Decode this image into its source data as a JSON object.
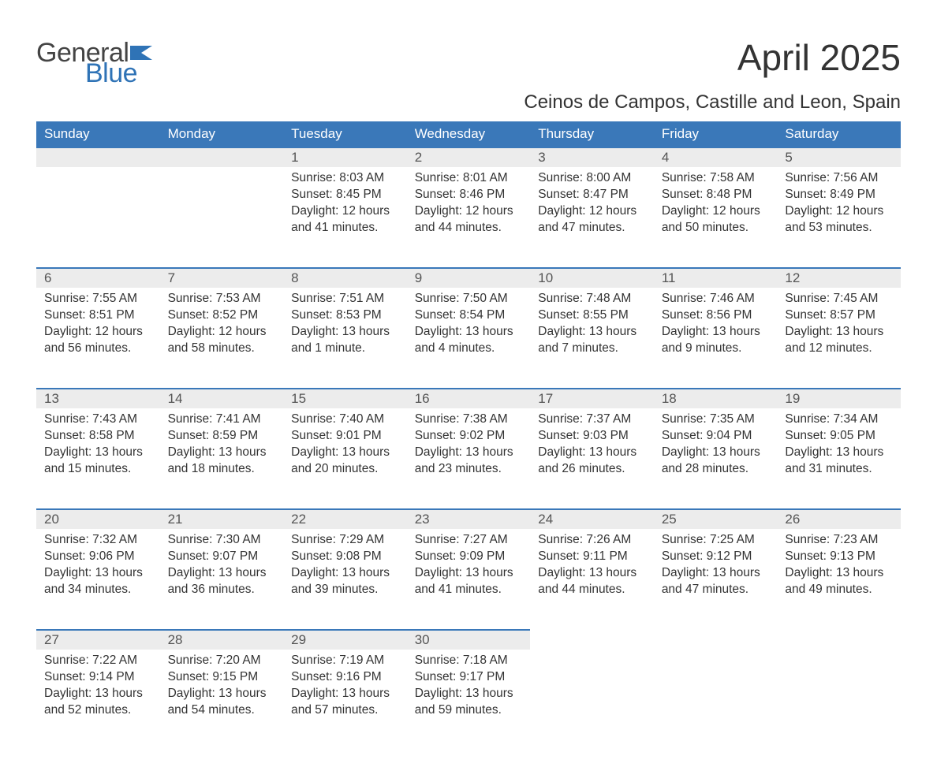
{
  "logo": {
    "text_general": "General",
    "text_blue": "Blue",
    "flag_color": "#2f73b6"
  },
  "title": "April 2025",
  "subtitle": "Ceinos de Campos, Castille and Leon, Spain",
  "colors": {
    "header_bg": "#3a78b9",
    "header_text": "#ffffff",
    "daynum_bg": "#ececec",
    "daynum_border": "#3a78b9",
    "body_text": "#333333",
    "page_bg": "#ffffff"
  },
  "typography": {
    "title_fontsize": 46,
    "subtitle_fontsize": 24,
    "header_fontsize": 17,
    "daynum_fontsize": 17,
    "cell_fontsize": 15.5,
    "font_family": "Arial"
  },
  "weekdays": [
    "Sunday",
    "Monday",
    "Tuesday",
    "Wednesday",
    "Thursday",
    "Friday",
    "Saturday"
  ],
  "weeks": [
    [
      null,
      null,
      {
        "day": "1",
        "sunrise": "Sunrise: 8:03 AM",
        "sunset": "Sunset: 8:45 PM",
        "d1": "Daylight: 12 hours",
        "d2": "and 41 minutes."
      },
      {
        "day": "2",
        "sunrise": "Sunrise: 8:01 AM",
        "sunset": "Sunset: 8:46 PM",
        "d1": "Daylight: 12 hours",
        "d2": "and 44 minutes."
      },
      {
        "day": "3",
        "sunrise": "Sunrise: 8:00 AM",
        "sunset": "Sunset: 8:47 PM",
        "d1": "Daylight: 12 hours",
        "d2": "and 47 minutes."
      },
      {
        "day": "4",
        "sunrise": "Sunrise: 7:58 AM",
        "sunset": "Sunset: 8:48 PM",
        "d1": "Daylight: 12 hours",
        "d2": "and 50 minutes."
      },
      {
        "day": "5",
        "sunrise": "Sunrise: 7:56 AM",
        "sunset": "Sunset: 8:49 PM",
        "d1": "Daylight: 12 hours",
        "d2": "and 53 minutes."
      }
    ],
    [
      {
        "day": "6",
        "sunrise": "Sunrise: 7:55 AM",
        "sunset": "Sunset: 8:51 PM",
        "d1": "Daylight: 12 hours",
        "d2": "and 56 minutes."
      },
      {
        "day": "7",
        "sunrise": "Sunrise: 7:53 AM",
        "sunset": "Sunset: 8:52 PM",
        "d1": "Daylight: 12 hours",
        "d2": "and 58 minutes."
      },
      {
        "day": "8",
        "sunrise": "Sunrise: 7:51 AM",
        "sunset": "Sunset: 8:53 PM",
        "d1": "Daylight: 13 hours",
        "d2": "and 1 minute."
      },
      {
        "day": "9",
        "sunrise": "Sunrise: 7:50 AM",
        "sunset": "Sunset: 8:54 PM",
        "d1": "Daylight: 13 hours",
        "d2": "and 4 minutes."
      },
      {
        "day": "10",
        "sunrise": "Sunrise: 7:48 AM",
        "sunset": "Sunset: 8:55 PM",
        "d1": "Daylight: 13 hours",
        "d2": "and 7 minutes."
      },
      {
        "day": "11",
        "sunrise": "Sunrise: 7:46 AM",
        "sunset": "Sunset: 8:56 PM",
        "d1": "Daylight: 13 hours",
        "d2": "and 9 minutes."
      },
      {
        "day": "12",
        "sunrise": "Sunrise: 7:45 AM",
        "sunset": "Sunset: 8:57 PM",
        "d1": "Daylight: 13 hours",
        "d2": "and 12 minutes."
      }
    ],
    [
      {
        "day": "13",
        "sunrise": "Sunrise: 7:43 AM",
        "sunset": "Sunset: 8:58 PM",
        "d1": "Daylight: 13 hours",
        "d2": "and 15 minutes."
      },
      {
        "day": "14",
        "sunrise": "Sunrise: 7:41 AM",
        "sunset": "Sunset: 8:59 PM",
        "d1": "Daylight: 13 hours",
        "d2": "and 18 minutes."
      },
      {
        "day": "15",
        "sunrise": "Sunrise: 7:40 AM",
        "sunset": "Sunset: 9:01 PM",
        "d1": "Daylight: 13 hours",
        "d2": "and 20 minutes."
      },
      {
        "day": "16",
        "sunrise": "Sunrise: 7:38 AM",
        "sunset": "Sunset: 9:02 PM",
        "d1": "Daylight: 13 hours",
        "d2": "and 23 minutes."
      },
      {
        "day": "17",
        "sunrise": "Sunrise: 7:37 AM",
        "sunset": "Sunset: 9:03 PM",
        "d1": "Daylight: 13 hours",
        "d2": "and 26 minutes."
      },
      {
        "day": "18",
        "sunrise": "Sunrise: 7:35 AM",
        "sunset": "Sunset: 9:04 PM",
        "d1": "Daylight: 13 hours",
        "d2": "and 28 minutes."
      },
      {
        "day": "19",
        "sunrise": "Sunrise: 7:34 AM",
        "sunset": "Sunset: 9:05 PM",
        "d1": "Daylight: 13 hours",
        "d2": "and 31 minutes."
      }
    ],
    [
      {
        "day": "20",
        "sunrise": "Sunrise: 7:32 AM",
        "sunset": "Sunset: 9:06 PM",
        "d1": "Daylight: 13 hours",
        "d2": "and 34 minutes."
      },
      {
        "day": "21",
        "sunrise": "Sunrise: 7:30 AM",
        "sunset": "Sunset: 9:07 PM",
        "d1": "Daylight: 13 hours",
        "d2": "and 36 minutes."
      },
      {
        "day": "22",
        "sunrise": "Sunrise: 7:29 AM",
        "sunset": "Sunset: 9:08 PM",
        "d1": "Daylight: 13 hours",
        "d2": "and 39 minutes."
      },
      {
        "day": "23",
        "sunrise": "Sunrise: 7:27 AM",
        "sunset": "Sunset: 9:09 PM",
        "d1": "Daylight: 13 hours",
        "d2": "and 41 minutes."
      },
      {
        "day": "24",
        "sunrise": "Sunrise: 7:26 AM",
        "sunset": "Sunset: 9:11 PM",
        "d1": "Daylight: 13 hours",
        "d2": "and 44 minutes."
      },
      {
        "day": "25",
        "sunrise": "Sunrise: 7:25 AM",
        "sunset": "Sunset: 9:12 PM",
        "d1": "Daylight: 13 hours",
        "d2": "and 47 minutes."
      },
      {
        "day": "26",
        "sunrise": "Sunrise: 7:23 AM",
        "sunset": "Sunset: 9:13 PM",
        "d1": "Daylight: 13 hours",
        "d2": "and 49 minutes."
      }
    ],
    [
      {
        "day": "27",
        "sunrise": "Sunrise: 7:22 AM",
        "sunset": "Sunset: 9:14 PM",
        "d1": "Daylight: 13 hours",
        "d2": "and 52 minutes."
      },
      {
        "day": "28",
        "sunrise": "Sunrise: 7:20 AM",
        "sunset": "Sunset: 9:15 PM",
        "d1": "Daylight: 13 hours",
        "d2": "and 54 minutes."
      },
      {
        "day": "29",
        "sunrise": "Sunrise: 7:19 AM",
        "sunset": "Sunset: 9:16 PM",
        "d1": "Daylight: 13 hours",
        "d2": "and 57 minutes."
      },
      {
        "day": "30",
        "sunrise": "Sunrise: 7:18 AM",
        "sunset": "Sunset: 9:17 PM",
        "d1": "Daylight: 13 hours",
        "d2": "and 59 minutes."
      },
      null,
      null,
      null
    ]
  ]
}
